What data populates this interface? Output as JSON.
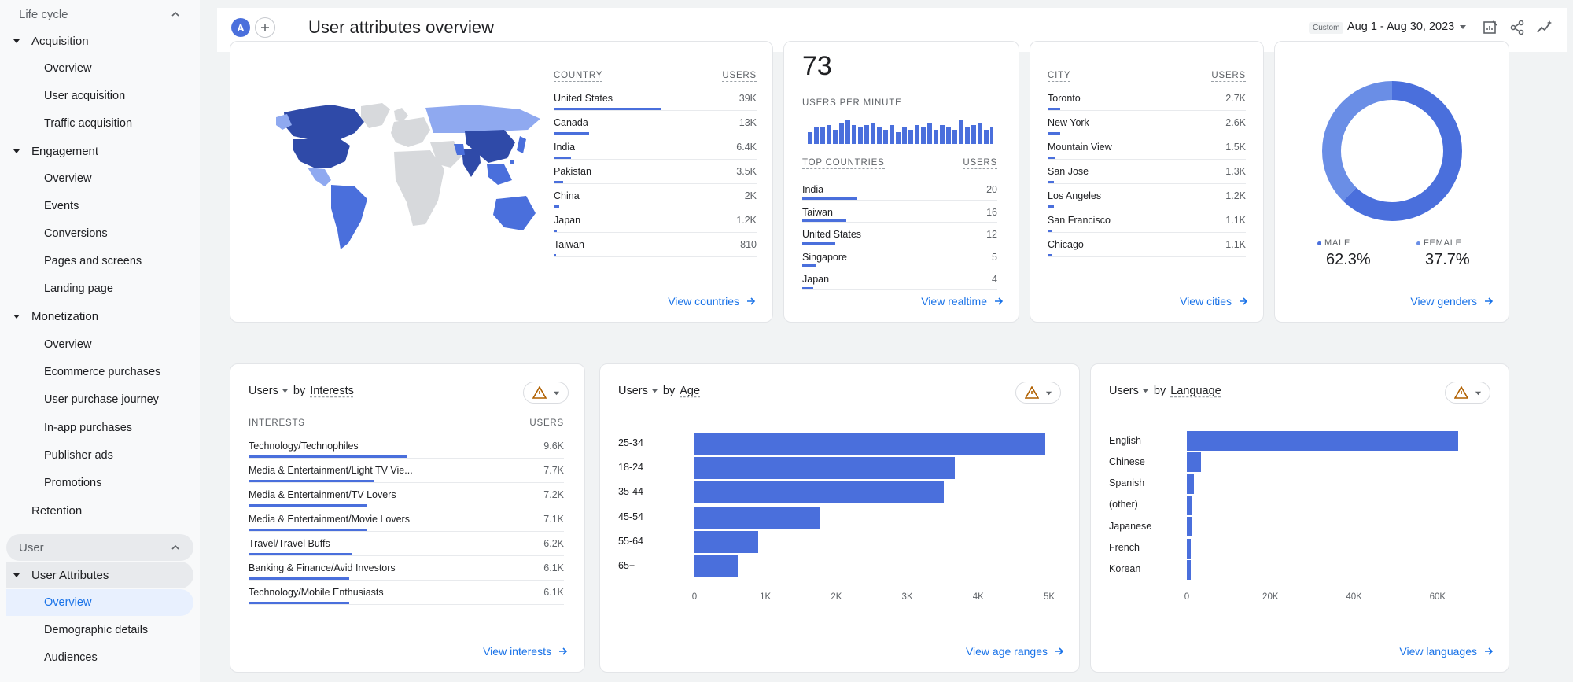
{
  "colors": {
    "accent": "#4a6fdc",
    "link": "#1a73e8",
    "warn": "#b06000"
  },
  "sidebar": {
    "lifecycle": "Life cycle",
    "acquisition": {
      "label": "Acquisition",
      "items": [
        "Overview",
        "User acquisition",
        "Traffic acquisition"
      ]
    },
    "engagement": {
      "label": "Engagement",
      "items": [
        "Overview",
        "Events",
        "Conversions",
        "Pages and screens",
        "Landing page"
      ]
    },
    "monetization": {
      "label": "Monetization",
      "items": [
        "Overview",
        "Ecommerce purchases",
        "User purchase journey",
        "In-app purchases",
        "Publisher ads",
        "Promotions"
      ]
    },
    "retention": "Retention",
    "user": "User",
    "user_attributes": {
      "label": "User Attributes",
      "items": [
        "Overview",
        "Demographic details",
        "Audiences"
      ]
    }
  },
  "header": {
    "avatar": "A",
    "title": "User attributes overview",
    "custom": "Custom",
    "date_range": "Aug 1 - Aug 30, 2023"
  },
  "countries": {
    "col_label": "COUNTRY",
    "col_users": "USERS",
    "rows": [
      {
        "label": "United States",
        "value": "39K",
        "fraction": 1.0
      },
      {
        "label": "Canada",
        "value": "13K",
        "fraction": 0.33
      },
      {
        "label": "India",
        "value": "6.4K",
        "fraction": 0.16
      },
      {
        "label": "Pakistan",
        "value": "3.5K",
        "fraction": 0.09
      },
      {
        "label": "China",
        "value": "2K",
        "fraction": 0.05
      },
      {
        "label": "Japan",
        "value": "1.2K",
        "fraction": 0.03
      },
      {
        "label": "Taiwan",
        "value": "810",
        "fraction": 0.02
      }
    ],
    "link": "View countries"
  },
  "realtime": {
    "count": "73",
    "per_minute": "USERS PER MINUTE",
    "sparkline": [
      5,
      7,
      7,
      8,
      6,
      9,
      10,
      8,
      7,
      8,
      9,
      7,
      6,
      8,
      5,
      7,
      6,
      8,
      7,
      9,
      6,
      8,
      7,
      6,
      10,
      7,
      8,
      9,
      6,
      7
    ],
    "col_label": "TOP COUNTRIES",
    "col_users": "USERS",
    "rows": [
      {
        "label": "India",
        "value": "20",
        "fraction": 1.0
      },
      {
        "label": "Taiwan",
        "value": "16",
        "fraction": 0.8
      },
      {
        "label": "United States",
        "value": "12",
        "fraction": 0.6
      },
      {
        "label": "Singapore",
        "value": "5",
        "fraction": 0.25
      },
      {
        "label": "Japan",
        "value": "4",
        "fraction": 0.2
      }
    ],
    "link": "View realtime"
  },
  "cities": {
    "col_label": "CITY",
    "col_users": "USERS",
    "rows": [
      {
        "label": "Toronto",
        "value": "2.7K",
        "fraction": 0.1
      },
      {
        "label": "New York",
        "value": "2.6K",
        "fraction": 0.1
      },
      {
        "label": "Mountain View",
        "value": "1.5K",
        "fraction": 0.06
      },
      {
        "label": "San Jose",
        "value": "1.3K",
        "fraction": 0.05
      },
      {
        "label": "Los Angeles",
        "value": "1.2K",
        "fraction": 0.05
      },
      {
        "label": "San Francisco",
        "value": "1.1K",
        "fraction": 0.04
      },
      {
        "label": "Chicago",
        "value": "1.1K",
        "fraction": 0.04
      }
    ],
    "link": "View cities"
  },
  "genders": {
    "male_label": "MALE",
    "male_value": "62.3%",
    "male_pct": 62.3,
    "female_label": "FEMALE",
    "female_value": "37.7%",
    "female_pct": 37.7,
    "male_color": "#4a6fdc",
    "female_color": "#6a8ee6",
    "link": "View genders"
  },
  "interests": {
    "metric": "Users",
    "by": "by",
    "dimension": "Interests",
    "col_label": "INTERESTS",
    "col_users": "USERS",
    "rows": [
      {
        "label": "Technology/Technophiles",
        "value": "9.6K",
        "fraction": 0.63
      },
      {
        "label": "Media & Entertainment/Light TV Vie...",
        "value": "7.7K",
        "fraction": 0.5
      },
      {
        "label": "Media & Entertainment/TV Lovers",
        "value": "7.2K",
        "fraction": 0.47
      },
      {
        "label": "Media & Entertainment/Movie Lovers",
        "value": "7.1K",
        "fraction": 0.47
      },
      {
        "label": "Travel/Travel Buffs",
        "value": "6.2K",
        "fraction": 0.41
      },
      {
        "label": "Banking & Finance/Avid Investors",
        "value": "6.1K",
        "fraction": 0.4
      },
      {
        "label": "Technology/Mobile Enthusiasts",
        "value": "6.1K",
        "fraction": 0.4
      }
    ],
    "link": "View interests"
  },
  "age": {
    "metric": "Users",
    "by": "by",
    "dimension": "Age",
    "link": "View age ranges"
  },
  "language": {
    "metric": "Users",
    "by": "by",
    "dimension": "Language",
    "link": "View languages"
  },
  "chart_data": [
    {
      "type": "bar",
      "orientation": "horizontal",
      "title": "Users by Age",
      "categories": [
        "25-34",
        "18-24",
        "35-44",
        "45-54",
        "55-64",
        "65+"
      ],
      "values": [
        4950,
        3670,
        3510,
        1770,
        900,
        610
      ],
      "xlim": [
        0,
        5000
      ],
      "xticks": [
        "0",
        "1K",
        "2K",
        "3K",
        "4K",
        "5K"
      ]
    },
    {
      "type": "bar",
      "orientation": "horizontal",
      "title": "Users by Language",
      "categories": [
        "English",
        "Chinese",
        "Spanish",
        "(other)",
        "Japanese",
        "French",
        "Korean"
      ],
      "values": [
        65000,
        3400,
        1700,
        1300,
        1100,
        1000,
        900
      ],
      "xlim": [
        0,
        70000
      ],
      "xticks": [
        "0",
        "20K",
        "40K",
        "60K"
      ]
    }
  ]
}
